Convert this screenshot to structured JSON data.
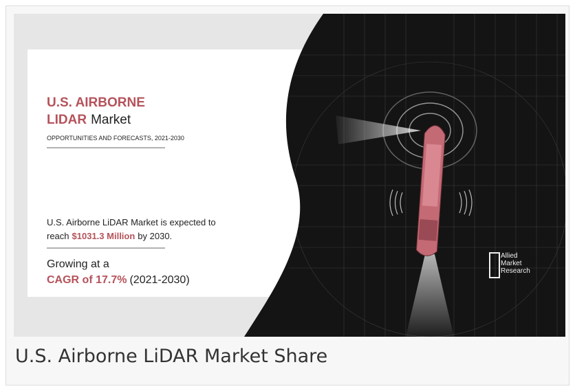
{
  "banner": {
    "title_line1": "U.S. AIRBORNE",
    "title_highlight": "LIDAR",
    "title_rest": "Market",
    "subtitle": "OPPORTUNITIES AND FORECASTS, 2021-2030",
    "statement": {
      "line1": "U.S. Airborne LiDAR Market is expected to",
      "prefix": "reach",
      "highlight": "$1031.3 Million",
      "suffix": "by 2030."
    },
    "growth": {
      "line1": "Growing at a",
      "highlight": "CAGR of 17.7%",
      "suffix": "(2021-2030)"
    },
    "logo": [
      "Allied",
      "Market",
      "Research"
    ]
  },
  "caption": "U.S. Airborne LiDAR Market Share"
}
